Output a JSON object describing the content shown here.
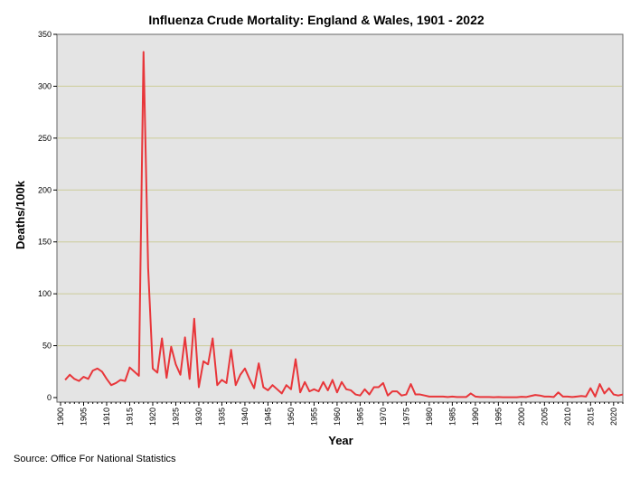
{
  "chart_data": {
    "type": "line",
    "title": "Influenza Crude Mortality: England & Wales, 1901 - 2022",
    "xlabel": "Year",
    "ylabel": "Deaths/100k",
    "source": "Source: Office For National Statistics",
    "xlim": [
      1900,
      2022
    ],
    "ylim": [
      0,
      350
    ],
    "x_ticks": [
      1900,
      1905,
      1910,
      1915,
      1920,
      1925,
      1930,
      1935,
      1940,
      1945,
      1950,
      1955,
      1960,
      1965,
      1970,
      1975,
      1980,
      1985,
      1990,
      1995,
      2000,
      2005,
      2010,
      2015,
      2020
    ],
    "y_ticks": [
      0,
      50,
      100,
      150,
      200,
      250,
      300,
      350
    ],
    "grid": "horizontal",
    "background": "#e4e4e4",
    "grid_color": "#cccc99",
    "series": [
      {
        "color": "#e8363a",
        "x": [
          1901,
          1902,
          1903,
          1904,
          1905,
          1906,
          1907,
          1908,
          1909,
          1910,
          1911,
          1912,
          1913,
          1914,
          1915,
          1916,
          1917,
          1918,
          1919,
          1920,
          1921,
          1922,
          1923,
          1924,
          1925,
          1926,
          1927,
          1928,
          1929,
          1930,
          1931,
          1932,
          1933,
          1934,
          1935,
          1936,
          1937,
          1938,
          1939,
          1940,
          1941,
          1942,
          1943,
          1944,
          1945,
          1946,
          1947,
          1948,
          1949,
          1950,
          1951,
          1952,
          1953,
          1954,
          1955,
          1956,
          1957,
          1958,
          1959,
          1960,
          1961,
          1962,
          1963,
          1964,
          1965,
          1966,
          1967,
          1968,
          1969,
          1970,
          1971,
          1972,
          1973,
          1974,
          1975,
          1976,
          1977,
          1978,
          1979,
          1980,
          1981,
          1982,
          1983,
          1984,
          1985,
          1986,
          1987,
          1988,
          1989,
          1990,
          1991,
          1992,
          1993,
          1994,
          1995,
          1996,
          1997,
          1998,
          1999,
          2000,
          2001,
          2002,
          2003,
          2004,
          2005,
          2006,
          2007,
          2008,
          2009,
          2010,
          2011,
          2012,
          2013,
          2014,
          2015,
          2016,
          2017,
          2018,
          2019,
          2020,
          2021,
          2022
        ],
        "y": [
          17,
          22,
          18,
          16,
          20,
          18,
          26,
          28,
          25,
          18,
          12,
          14,
          17,
          16,
          29,
          25,
          21,
          333,
          125,
          28,
          24,
          57,
          19,
          49,
          32,
          22,
          58,
          18,
          76,
          10,
          35,
          32,
          57,
          12,
          17,
          14,
          46,
          12,
          22,
          28,
          18,
          9,
          33,
          10,
          7,
          12,
          8,
          4,
          12,
          8,
          37,
          5,
          15,
          6,
          8,
          6,
          15,
          7,
          17,
          5,
          15,
          8,
          7,
          3,
          2,
          8,
          3,
          10,
          10,
          14,
          2,
          6,
          6,
          2,
          3,
          13,
          3,
          3,
          2,
          1,
          1,
          1,
          1,
          0.5,
          1,
          0.5,
          0.5,
          0.5,
          4,
          1,
          0.5,
          0.5,
          0.5,
          0.3,
          0.5,
          0.3,
          0.3,
          0.3,
          0.3,
          0.8,
          0.5,
          1.5,
          2.5,
          2,
          1,
          1,
          0.5,
          5,
          1,
          1,
          0.5,
          1,
          1.5,
          1,
          9,
          1,
          13,
          4,
          9,
          3,
          2,
          3
        ]
      }
    ]
  }
}
